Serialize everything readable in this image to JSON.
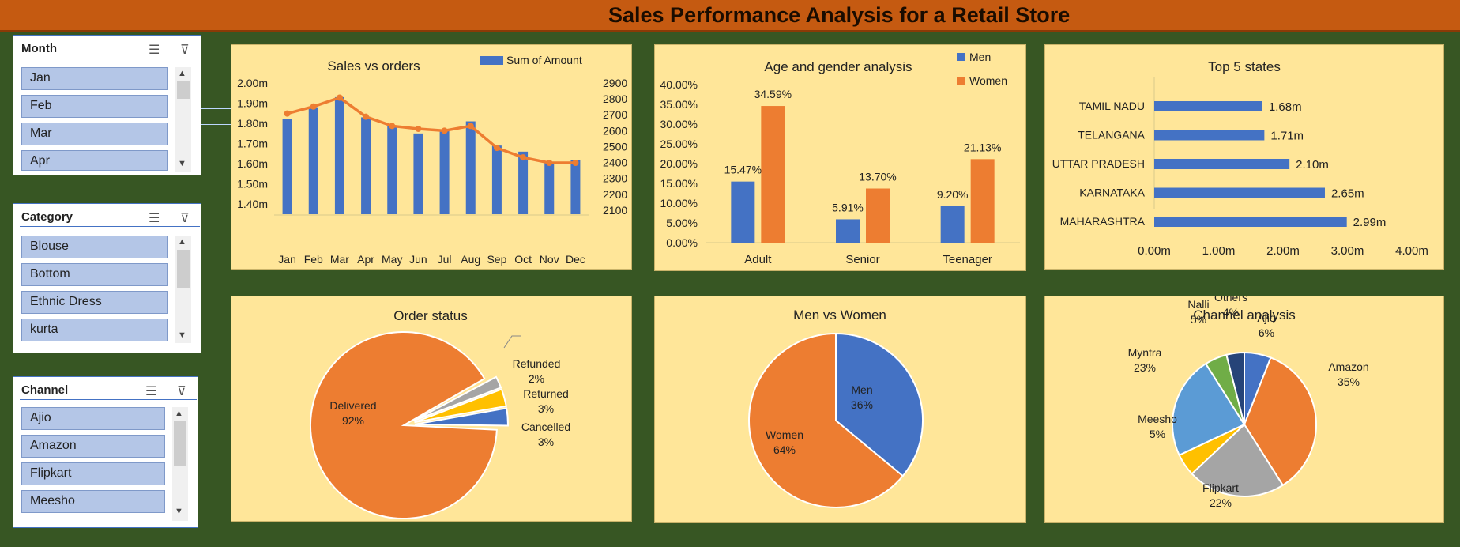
{
  "title": "Sales Performance Analysis for a Retail Store",
  "slicers": [
    {
      "title": "Month",
      "items": [
        "Jan",
        "Feb",
        "Mar",
        "Apr"
      ]
    },
    {
      "title": "Category",
      "items": [
        "Blouse",
        "Bottom",
        "Ethnic Dress",
        "kurta"
      ]
    },
    {
      "title": "Channel",
      "items": [
        "Ajio",
        "Amazon",
        "Flipkart",
        "Meesho"
      ]
    }
  ],
  "icons": {
    "multiselect": "multi-select-icon",
    "clear_filter": "clear-filter-icon"
  },
  "colors": {
    "blue": "#4472c4",
    "orange": "#ed7d31",
    "gray": "#a5a5a5",
    "yellow": "#ffc000",
    "lightblue": "#5b9bd5",
    "green": "#70ad47",
    "darkblue": "#264478",
    "panel": "#ffe699",
    "background": "#375623",
    "header": "#c55a11"
  },
  "chart_data": [
    {
      "type": "bar",
      "title": "Sales vs orders",
      "categories": [
        "Jan",
        "Feb",
        "Mar",
        "Apr",
        "May",
        "Jun",
        "Jul",
        "Aug",
        "Sep",
        "Oct",
        "Nov",
        "Dec"
      ],
      "series": [
        {
          "name": "Sum of Amount",
          "type": "bar",
          "axis": "left",
          "values": [
            1.82,
            1.88,
            1.93,
            1.83,
            1.79,
            1.75,
            1.77,
            1.81,
            1.69,
            1.66,
            1.61,
            1.62
          ]
        },
        {
          "type": "line",
          "axis": "right",
          "values": [
            2708,
            2752,
            2808,
            2688,
            2630,
            2612,
            2600,
            2630,
            2492,
            2432,
            2398,
            2398
          ]
        }
      ],
      "ylim": [
        1.35,
        2.0
      ],
      "yticks": [
        "2.00m",
        "1.90m",
        "1.80m",
        "1.70m",
        "1.60m",
        "1.50m",
        "1.40m"
      ],
      "y2lim": [
        2075,
        2900
      ],
      "y2ticks": [
        "2900",
        "2800",
        "2700",
        "2600",
        "2500",
        "2400",
        "2300",
        "2200",
        "2100"
      ],
      "legend": "top-right"
    },
    {
      "type": "bar",
      "title": "Age and gender analysis",
      "categories": [
        "Adult",
        "Senior",
        "Teenager"
      ],
      "series": [
        {
          "name": "Men",
          "values": [
            15.47,
            5.91,
            9.2
          ],
          "labels": [
            "15.47%",
            "5.91%",
            "9.20%"
          ]
        },
        {
          "name": "Women",
          "values": [
            34.59,
            13.7,
            21.13
          ],
          "labels": [
            "34.59%",
            "13.70%",
            "21.13%"
          ]
        }
      ],
      "ylim": [
        0,
        40
      ],
      "yticks": [
        "40.00%",
        "35.00%",
        "30.00%",
        "25.00%",
        "20.00%",
        "15.00%",
        "10.00%",
        "5.00%",
        "0.00%"
      ],
      "legend": "top-right"
    },
    {
      "type": "bar",
      "orientation": "horizontal",
      "title": "Top 5 states",
      "categories": [
        "TAMIL NADU",
        "TELANGANA",
        "UTTAR PRADESH",
        "KARNATAKA",
        "MAHARASHTRA"
      ],
      "values": [
        1.68,
        1.71,
        2.1,
        2.65,
        2.99
      ],
      "labels": [
        "1.68m",
        "1.71m",
        "2.10m",
        "2.65m",
        "2.99m"
      ],
      "xlim": [
        0,
        4
      ],
      "xticks": [
        "0.00m",
        "1.00m",
        "2.00m",
        "3.00m",
        "4.00m"
      ]
    },
    {
      "type": "pie",
      "title": "Order status",
      "slices": [
        {
          "name": "Delivered",
          "value": 92,
          "label": "92%"
        },
        {
          "name": "Refunded",
          "value": 2,
          "label": "2%"
        },
        {
          "name": "Returned",
          "value": 3,
          "label": "3%"
        },
        {
          "name": "Cancelled",
          "value": 3,
          "label": "3%"
        }
      ]
    },
    {
      "type": "pie",
      "title": "Men vs Women",
      "slices": [
        {
          "name": "Men",
          "value": 36,
          "label": "36%"
        },
        {
          "name": "Women",
          "value": 64,
          "label": "64%"
        }
      ]
    },
    {
      "type": "pie",
      "title": "Channel analysis",
      "slices": [
        {
          "name": "Ajio",
          "value": 6,
          "label": "6%"
        },
        {
          "name": "Amazon",
          "value": 35,
          "label": "35%"
        },
        {
          "name": "Flipkart",
          "value": 22,
          "label": "22%"
        },
        {
          "name": "Meesho",
          "value": 5,
          "label": "5%"
        },
        {
          "name": "Myntra",
          "value": 23,
          "label": "23%"
        },
        {
          "name": "Nalli",
          "value": 5,
          "label": "5%"
        },
        {
          "name": "Others",
          "value": 4,
          "label": "4%"
        }
      ]
    }
  ]
}
